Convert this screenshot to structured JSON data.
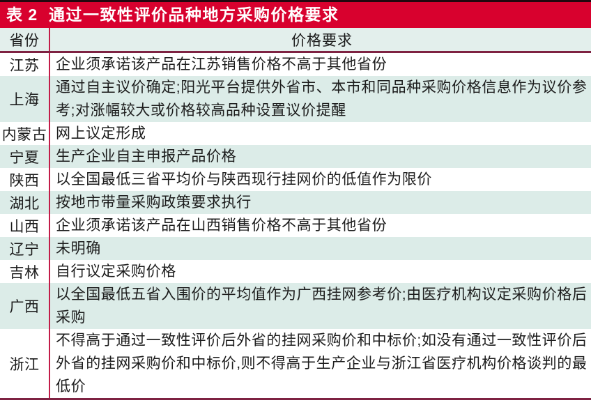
{
  "table": {
    "tag": "表 2",
    "title": "通过一致性评价品种地方采购价格要求",
    "columns": [
      "省份",
      "价格要求"
    ],
    "rows": [
      {
        "province": "江苏",
        "requirement": "企业须承诺该产品在江苏销售价格不高于其他省份"
      },
      {
        "province": "上海",
        "requirement": "通过自主议价确定;阳光平台提供外省市、本市和同品种采购价格信息作为议价参考;对涨幅较大或价格较高品种设置议价提醒"
      },
      {
        "province": "内蒙古",
        "requirement": "网上议定形成"
      },
      {
        "province": "宁夏",
        "requirement": "生产企业自主申报产品价格"
      },
      {
        "province": "陕西",
        "requirement": "以全国最低三省平均价与陕西现行挂网价的低值作为限价"
      },
      {
        "province": "湖北",
        "requirement": "按地市带量采购政策要求执行"
      },
      {
        "province": "山西",
        "requirement": "企业须承诺该产品在山西销售价格不高于其他省份"
      },
      {
        "province": "辽宁",
        "requirement": "未明确"
      },
      {
        "province": "吉林",
        "requirement": "自行议定采购价格"
      },
      {
        "province": "广西",
        "requirement": "以全国最低五省入围价的平均值作为广西挂网参考价;由医疗机构议定采购价格后采购"
      },
      {
        "province": "浙江",
        "requirement": "不得高于通过一致性评价后外省的挂网采购价和中标价;如没有通过一致性评价后外省的挂网采购价和中标价,则不得高于生产企业与浙江省医疗机构价格谈判的最低价"
      }
    ],
    "colors": {
      "header_bar": "#d8012e",
      "title_text": "#ffffff",
      "header_row_bg": "#e3efec",
      "row_bg": "#ffffff",
      "row_alt_bg": "#dcece8",
      "divider_vertical": "#c21c48",
      "divider_horizontal": "#7e2242",
      "text": "#1c1c1c"
    }
  }
}
